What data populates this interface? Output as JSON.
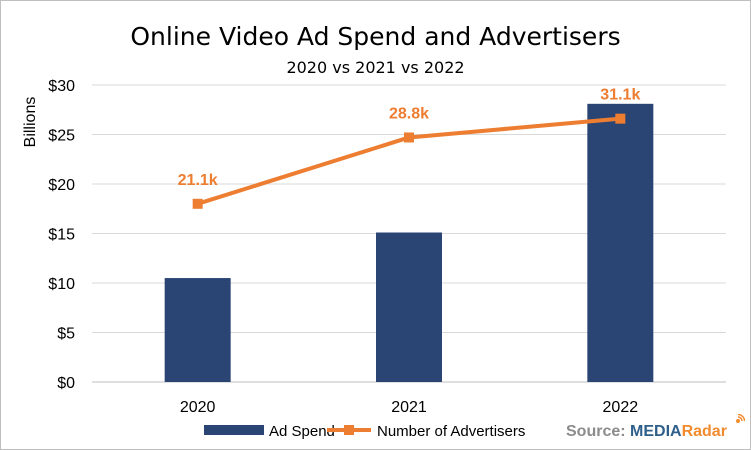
{
  "chart_data": {
    "type": "bar+line",
    "title": "Online Video Ad Spend and Advertisers",
    "subtitle": "2020 vs 2021 vs 2022",
    "ylabel": "Billions",
    "ylim": [
      0,
      30
    ],
    "yticks": [
      0,
      5,
      10,
      15,
      20,
      25,
      30
    ],
    "ytick_labels": [
      "$0",
      "$5",
      "$10",
      "$15",
      "$20",
      "$25",
      "$30"
    ],
    "categories": [
      "2020",
      "2021",
      "2022"
    ],
    "grid": true,
    "legend_position": "bottom",
    "series": [
      {
        "name": "Ad Spend",
        "type": "bar",
        "color": "#2a4473",
        "values": [
          10.5,
          15.1,
          28.1
        ]
      },
      {
        "name": "Number of Advertisers",
        "type": "line",
        "color": "#ed7d31",
        "values": [
          18.0,
          24.7,
          26.6
        ],
        "data_labels": [
          "21.1k",
          "28.8k",
          "31.1k"
        ]
      }
    ]
  },
  "source": {
    "prefix": "Source: ",
    "brand_part1": "MEDIA",
    "brand_part2": "Radar"
  }
}
